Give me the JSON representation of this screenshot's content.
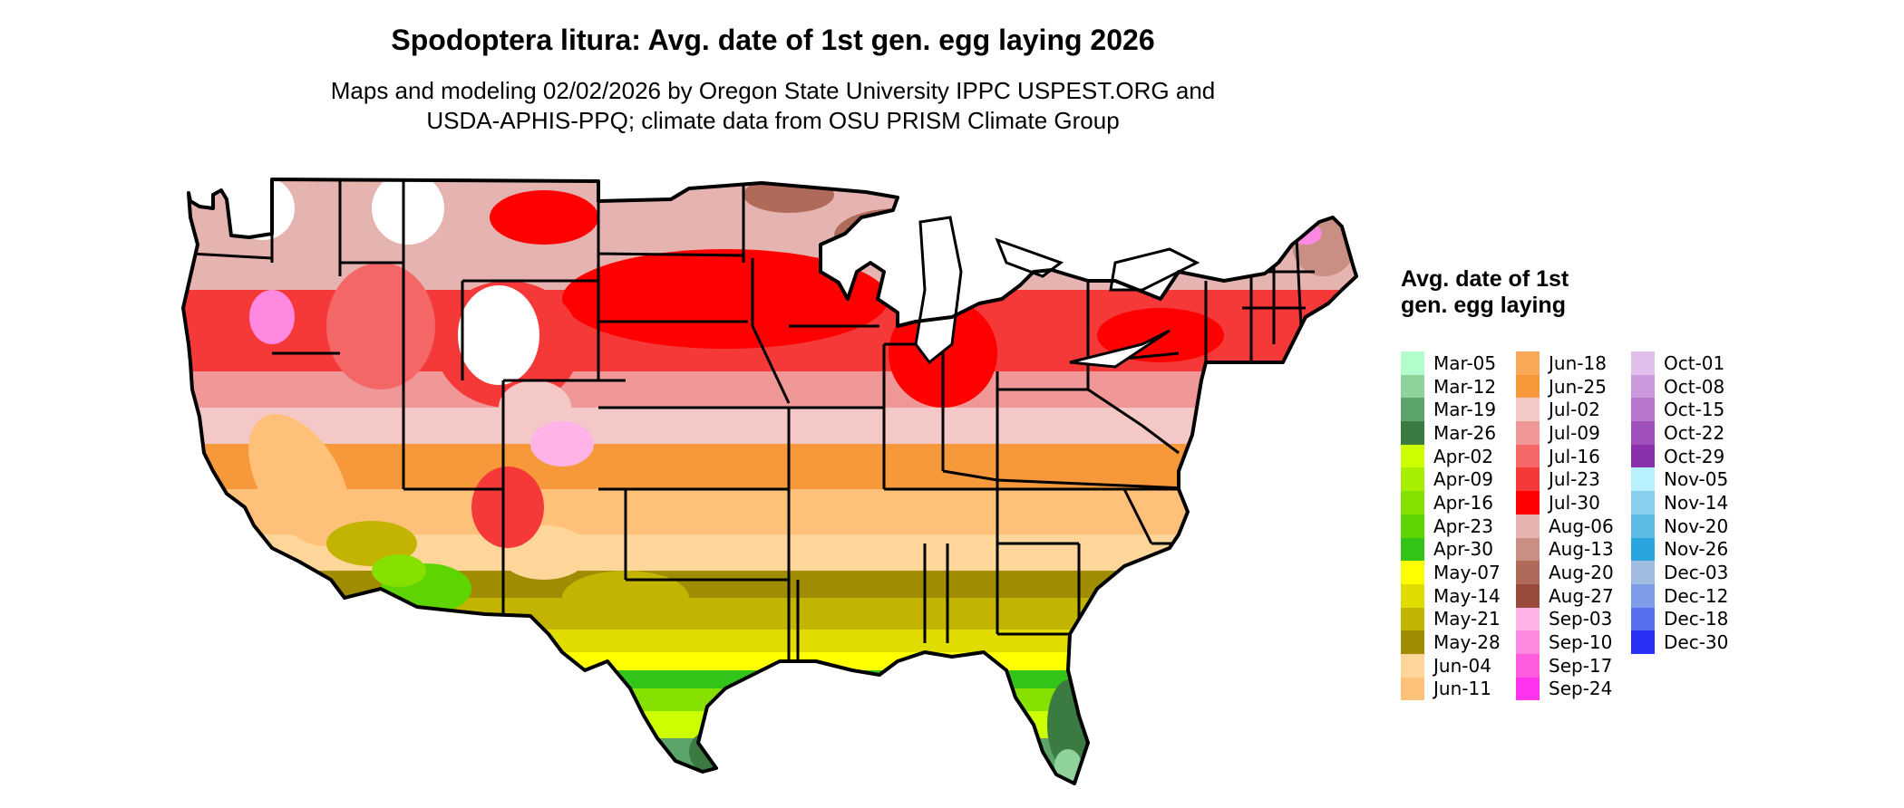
{
  "header": {
    "title": "Spodoptera litura: Avg. date of 1st gen. egg laying 2026",
    "subtitle_line1": "Maps and modeling 02/02/2026 by Oregon State University IPPC USPEST.ORG and",
    "subtitle_line2": "USDA-APHIS-PPQ; climate data from OSU PRISM Climate Group"
  },
  "legend": {
    "title": "Avg. date of 1st gen. egg laying",
    "columns": [
      [
        {
          "label": "Mar-05",
          "color": "#b3ffcc"
        },
        {
          "label": "Mar-12",
          "color": "#8fd39a"
        },
        {
          "label": "Mar-19",
          "color": "#5da46a"
        },
        {
          "label": "Mar-26",
          "color": "#3b7a40"
        },
        {
          "label": "Apr-02",
          "color": "#ccff00"
        },
        {
          "label": "Apr-09",
          "color": "#a8ee00"
        },
        {
          "label": "Apr-16",
          "color": "#86e000"
        },
        {
          "label": "Apr-23",
          "color": "#5ed400"
        },
        {
          "label": "Apr-30",
          "color": "#33c41a"
        },
        {
          "label": "May-07",
          "color": "#ffff00"
        },
        {
          "label": "May-14",
          "color": "#e0dc00"
        },
        {
          "label": "May-21",
          "color": "#c2b400"
        },
        {
          "label": "May-28",
          "color": "#a08c00"
        },
        {
          "label": "Jun-04",
          "color": "#ffd699"
        },
        {
          "label": "Jun-11",
          "color": "#ffc07a"
        }
      ],
      [
        {
          "label": "Jun-18",
          "color": "#f9a856"
        },
        {
          "label": "Jun-25",
          "color": "#f7983a"
        },
        {
          "label": "Jul-02",
          "color": "#f5c8c8"
        },
        {
          "label": "Jul-09",
          "color": "#f09898"
        },
        {
          "label": "Jul-16",
          "color": "#f56666"
        },
        {
          "label": "Jul-23",
          "color": "#f53838"
        },
        {
          "label": "Jul-30",
          "color": "#ff0000"
        },
        {
          "label": "Aug-06",
          "color": "#e6b4b0"
        },
        {
          "label": "Aug-13",
          "color": "#c98e84"
        },
        {
          "label": "Aug-20",
          "color": "#b06a5a"
        },
        {
          "label": "Aug-27",
          "color": "#9a4a3a"
        },
        {
          "label": "Sep-03",
          "color": "#ffb3e6"
        },
        {
          "label": "Sep-10",
          "color": "#ff88e0"
        },
        {
          "label": "Sep-17",
          "color": "#ff5ce0"
        },
        {
          "label": "Sep-24",
          "color": "#ff33ee"
        }
      ],
      [
        {
          "label": "Oct-01",
          "color": "#e0c0ea"
        },
        {
          "label": "Oct-08",
          "color": "#cc99dd"
        },
        {
          "label": "Oct-15",
          "color": "#b877cc"
        },
        {
          "label": "Oct-22",
          "color": "#a050bb"
        },
        {
          "label": "Oct-29",
          "color": "#8a30aa"
        },
        {
          "label": "Nov-05",
          "color": "#b8f0ff"
        },
        {
          "label": "Nov-14",
          "color": "#88d0ee"
        },
        {
          "label": "Nov-20",
          "color": "#5cbce6"
        },
        {
          "label": "Nov-26",
          "color": "#2aa4dc"
        },
        {
          "label": "Dec-03",
          "color": "#a0bce0"
        },
        {
          "label": "Dec-12",
          "color": "#7e9ce8"
        },
        {
          "label": "Dec-18",
          "color": "#5670ee"
        },
        {
          "label": "Dec-30",
          "color": "#2a30f5"
        }
      ]
    ]
  }
}
